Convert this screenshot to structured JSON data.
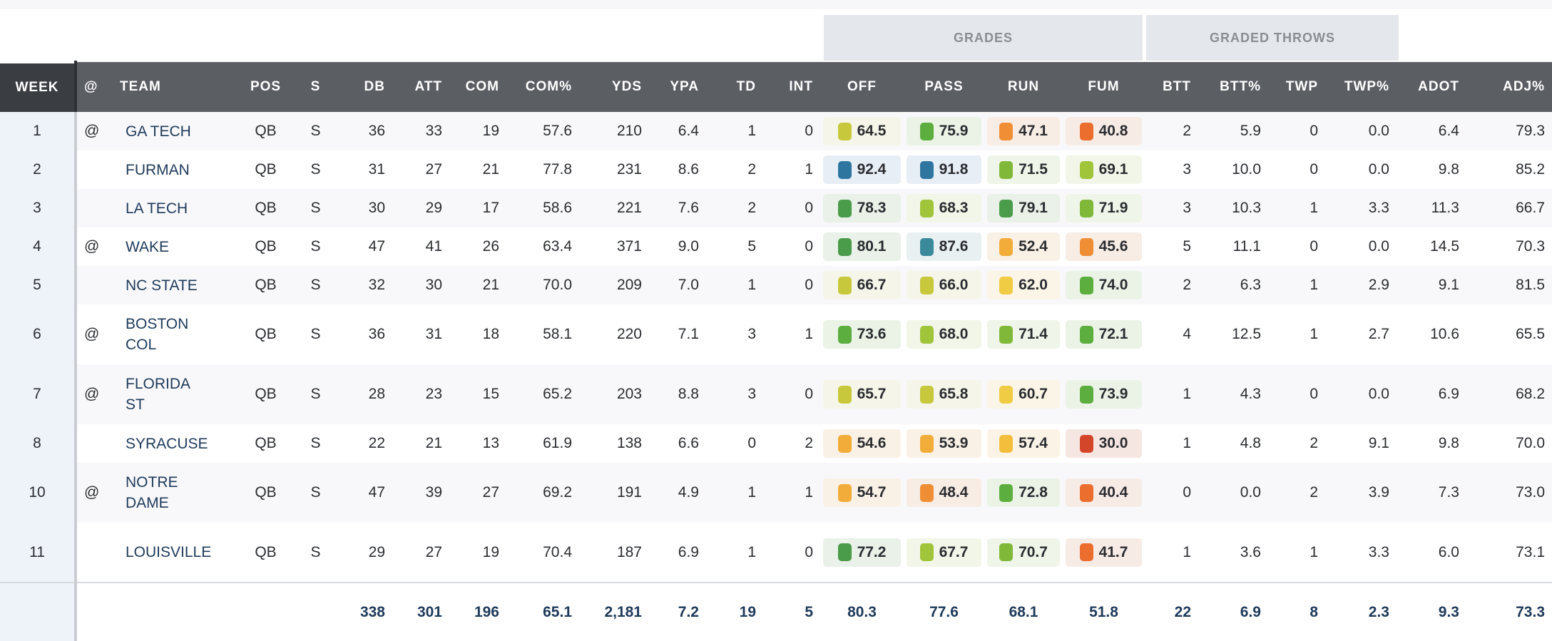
{
  "groups": {
    "grades": "GRADES",
    "graded_throws": "GRADED THROWS"
  },
  "columns": [
    "WEEK",
    "@",
    "TEAM",
    "POS",
    "S",
    "DB",
    "ATT",
    "COM",
    "COM%",
    "YDS",
    "YPA",
    "TD",
    "INT",
    "OFF",
    "PASS",
    "RUN",
    "FUM",
    "BTT",
    "BTT%",
    "TWP",
    "TWP%",
    "ADOT",
    "ADJ%"
  ],
  "rows": [
    [
      "1",
      "@",
      "GA TECH",
      "QB",
      "S",
      "36",
      "33",
      "19",
      "57.6",
      "210",
      "6.4",
      "1",
      "0",
      "64.5",
      "75.9",
      "47.1",
      "40.8",
      "2",
      "5.9",
      "0",
      "0.0",
      "6.4",
      "79.3"
    ],
    [
      "2",
      "",
      "FURMAN",
      "QB",
      "S",
      "31",
      "27",
      "21",
      "77.8",
      "231",
      "8.6",
      "2",
      "1",
      "92.4",
      "91.8",
      "71.5",
      "69.1",
      "3",
      "10.0",
      "0",
      "0.0",
      "9.8",
      "85.2"
    ],
    [
      "3",
      "",
      "LA TECH",
      "QB",
      "S",
      "30",
      "29",
      "17",
      "58.6",
      "221",
      "7.6",
      "2",
      "0",
      "78.3",
      "68.3",
      "79.1",
      "71.9",
      "3",
      "10.3",
      "1",
      "3.3",
      "11.3",
      "66.7"
    ],
    [
      "4",
      "@",
      "WAKE",
      "QB",
      "S",
      "47",
      "41",
      "26",
      "63.4",
      "371",
      "9.0",
      "5",
      "0",
      "80.1",
      "87.6",
      "52.4",
      "45.6",
      "5",
      "11.1",
      "0",
      "0.0",
      "14.5",
      "70.3"
    ],
    [
      "5",
      "",
      "NC STATE",
      "QB",
      "S",
      "32",
      "30",
      "21",
      "70.0",
      "209",
      "7.0",
      "1",
      "0",
      "66.7",
      "66.0",
      "62.0",
      "74.0",
      "2",
      "6.3",
      "1",
      "2.9",
      "9.1",
      "81.5"
    ],
    [
      "6",
      "@",
      "BOSTON COL",
      "QB",
      "S",
      "36",
      "31",
      "18",
      "58.1",
      "220",
      "7.1",
      "3",
      "1",
      "73.6",
      "68.0",
      "71.4",
      "72.1",
      "4",
      "12.5",
      "1",
      "2.7",
      "10.6",
      "65.5"
    ],
    [
      "7",
      "@",
      "FLORIDA ST",
      "QB",
      "S",
      "28",
      "23",
      "15",
      "65.2",
      "203",
      "8.8",
      "3",
      "0",
      "65.7",
      "65.8",
      "60.7",
      "73.9",
      "1",
      "4.3",
      "0",
      "0.0",
      "6.9",
      "68.2"
    ],
    [
      "8",
      "",
      "SYRACUSE",
      "QB",
      "S",
      "22",
      "21",
      "13",
      "61.9",
      "138",
      "6.6",
      "0",
      "2",
      "54.6",
      "53.9",
      "57.4",
      "30.0",
      "1",
      "4.8",
      "2",
      "9.1",
      "9.8",
      "70.0"
    ],
    [
      "10",
      "@",
      "NOTRE DAME",
      "QB",
      "S",
      "47",
      "39",
      "27",
      "69.2",
      "191",
      "4.9",
      "1",
      "1",
      "54.7",
      "48.4",
      "72.8",
      "40.4",
      "0",
      "0.0",
      "2",
      "3.9",
      "7.3",
      "73.0"
    ],
    [
      "11",
      "",
      "LOUISVILLE",
      "QB",
      "S",
      "29",
      "27",
      "19",
      "70.4",
      "187",
      "6.9",
      "1",
      "0",
      "77.2",
      "67.7",
      "70.7",
      "41.7",
      "1",
      "3.6",
      "1",
      "3.3",
      "6.0",
      "73.1"
    ]
  ],
  "totals": [
    "",
    "",
    "",
    "",
    "",
    "338",
    "301",
    "196",
    "65.1",
    "2,181",
    "7.2",
    "19",
    "5",
    "80.3",
    "77.6",
    "68.1",
    "51.8",
    "22",
    "6.9",
    "8",
    "2.3",
    "9.3",
    "73.3"
  ],
  "colors": {
    "header": "#5b5e63",
    "team": "#1e3a5a"
  }
}
